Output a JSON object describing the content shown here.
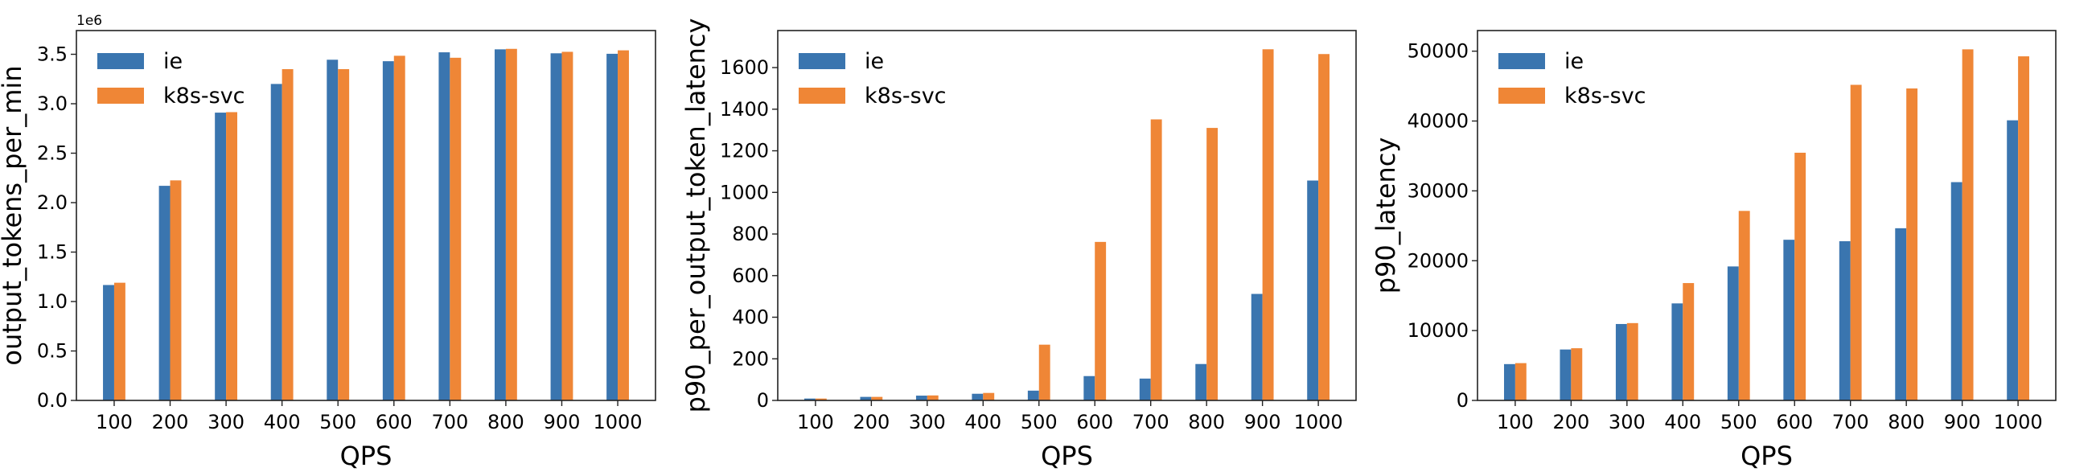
{
  "colors": {
    "ie": "#3a75af",
    "k8s-svc": "#ef8636"
  },
  "chart_data": [
    {
      "type": "bar",
      "categories": [
        "100",
        "200",
        "300",
        "400",
        "500",
        "600",
        "700",
        "800",
        "900",
        "1000"
      ],
      "xlabel": "QPS",
      "ylabel": "output_tokens_per_min",
      "offset_text": "1e6",
      "ylim": [
        0,
        3.74
      ],
      "yticks": [
        0.0,
        0.5,
        1.0,
        1.5,
        2.0,
        2.5,
        3.0,
        3.5
      ],
      "ytick_labels": [
        "0.0",
        "0.5",
        "1.0",
        "1.5",
        "2.0",
        "2.5",
        "3.0",
        "3.5"
      ],
      "legend": "top-left",
      "grid": false,
      "series": [
        {
          "name": "ie",
          "values": [
            1.167,
            2.17,
            2.91,
            3.2,
            3.445,
            3.43,
            3.52,
            3.55,
            3.51,
            3.505
          ]
        },
        {
          "name": "k8s-svc",
          "values": [
            1.19,
            2.225,
            2.915,
            3.35,
            3.35,
            3.485,
            3.465,
            3.555,
            3.525,
            3.54
          ]
        }
      ]
    },
    {
      "type": "bar",
      "categories": [
        "100",
        "200",
        "300",
        "400",
        "500",
        "600",
        "700",
        "800",
        "900",
        "1000"
      ],
      "xlabel": "QPS",
      "ylabel": "p90_per_output_token_latency",
      "ylim": [
        0,
        1778
      ],
      "yticks": [
        0,
        200,
        400,
        600,
        800,
        1000,
        1200,
        1400,
        1600
      ],
      "ytick_labels": [
        "0",
        "200",
        "400",
        "600",
        "800",
        "1000",
        "1200",
        "1400",
        "1600"
      ],
      "legend": "top-left",
      "grid": false,
      "series": [
        {
          "name": "ie",
          "values": [
            9,
            17,
            23,
            32,
            47,
            117,
            105,
            175,
            512,
            1057
          ]
        },
        {
          "name": "k8s-svc",
          "values": [
            9,
            17,
            24,
            36,
            268,
            762,
            1351,
            1310,
            1688,
            1665
          ]
        }
      ]
    },
    {
      "type": "bar",
      "categories": [
        "100",
        "200",
        "300",
        "400",
        "500",
        "600",
        "700",
        "800",
        "900",
        "1000"
      ],
      "xlabel": "QPS",
      "ylabel": "p90_latency",
      "ylim": [
        0,
        52950
      ],
      "yticks": [
        0,
        10000,
        20000,
        30000,
        40000,
        50000
      ],
      "ytick_labels": [
        "0",
        "10000",
        "20000",
        "30000",
        "40000",
        "50000"
      ],
      "legend": "top-left",
      "grid": false,
      "series": [
        {
          "name": "ie",
          "values": [
            5200,
            7290,
            10940,
            13890,
            19180,
            23000,
            22790,
            24650,
            31250,
            40100
          ]
        },
        {
          "name": "k8s-svc",
          "values": [
            5340,
            7470,
            11070,
            16800,
            27130,
            35460,
            45180,
            44660,
            50260,
            49260
          ]
        }
      ]
    }
  ]
}
